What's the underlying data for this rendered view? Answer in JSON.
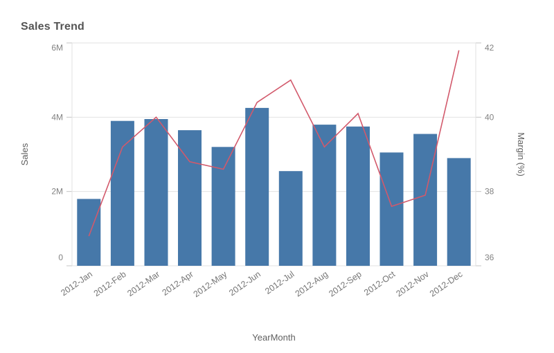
{
  "chart": {
    "title": "Sales Trend"
  },
  "chart_data": {
    "type": "combo",
    "title": "Sales Trend",
    "categories": [
      "2012-Jan",
      "2012-Feb",
      "2012-Mar",
      "2012-Apr",
      "2012-May",
      "2012-Jun",
      "2012-Jul",
      "2012-Aug",
      "2012-Sep",
      "2012-Oct",
      "2012-Nov",
      "2012-Dec"
    ],
    "series": [
      {
        "name": "Sales",
        "type": "bar",
        "axis": "left",
        "unit": "M",
        "values": [
          1.8,
          3.9,
          3.95,
          3.65,
          3.2,
          4.25,
          2.55,
          3.8,
          3.75,
          3.05,
          3.55,
          2.9
        ]
      },
      {
        "name": "Margin (%)",
        "type": "line",
        "axis": "right",
        "unit": "%",
        "values": [
          36.8,
          39.2,
          40.0,
          38.8,
          38.6,
          40.4,
          41.0,
          39.2,
          40.1,
          37.6,
          37.9,
          41.8
        ]
      }
    ],
    "xlabel": "YearMonth",
    "axes": {
      "left": {
        "label": "Sales",
        "min": 0,
        "max": 6,
        "unit": "M",
        "tick_values": [
          0,
          2,
          4,
          6
        ],
        "tick_labels": [
          "0",
          "2M",
          "4M",
          "6M"
        ]
      },
      "right": {
        "label": "Margin (%)",
        "min": 36,
        "max": 42,
        "tick_values": [
          36,
          38,
          40,
          42
        ],
        "tick_labels": [
          "36",
          "38",
          "40",
          "42"
        ]
      }
    },
    "grid": "horizontal",
    "legend_position": "none"
  },
  "colors": {
    "bar": "#4678a9",
    "line": "#d2596b",
    "grid": "#e2e2e2",
    "tick": "#c4c4c4",
    "background": "#ffffff",
    "title": "#545454",
    "tick_label": "#828282",
    "axis_title": "#5f5f5f"
  }
}
